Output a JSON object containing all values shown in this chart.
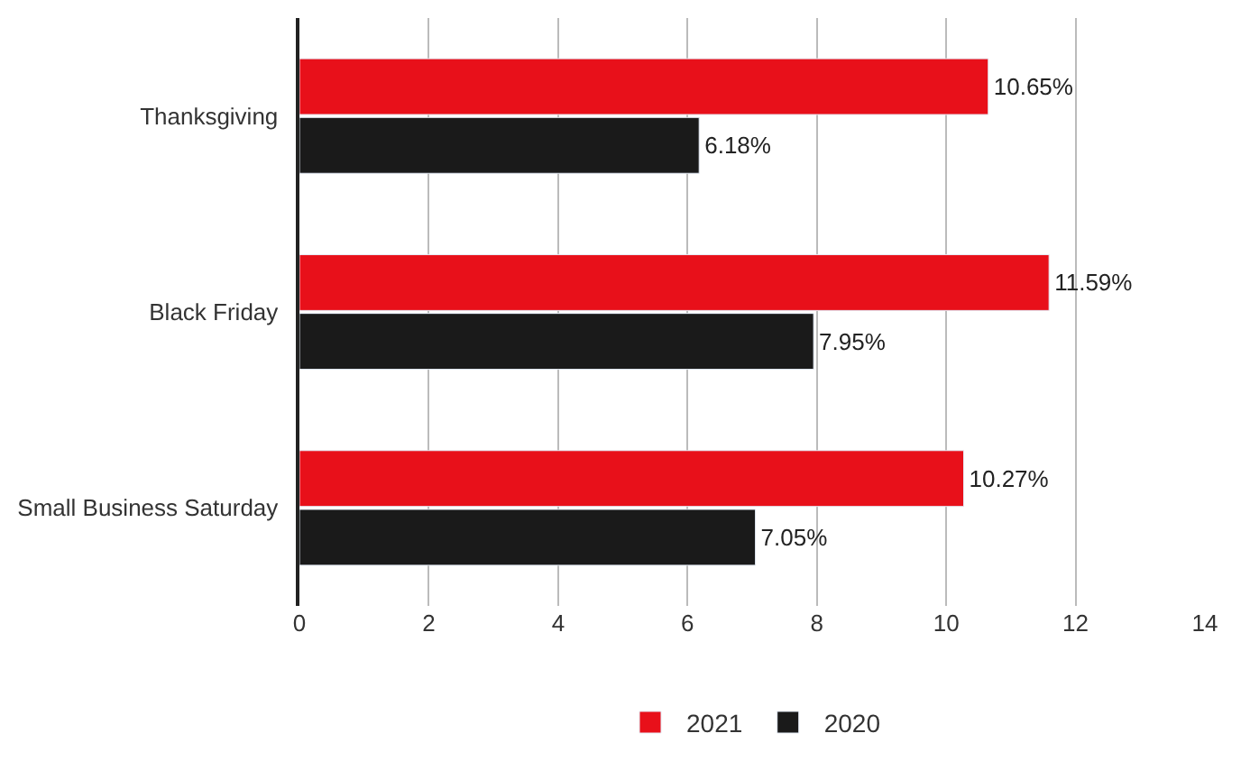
{
  "chart_data": {
    "type": "bar",
    "orientation": "horizontal",
    "categories": [
      "Thanksgiving",
      "Black Friday",
      "Small Business Saturday"
    ],
    "series": [
      {
        "name": "2021",
        "color": "#e8101a",
        "values": [
          10.65,
          11.59,
          10.27
        ],
        "value_labels": [
          "10.65%",
          "11.59%",
          "10.27%"
        ]
      },
      {
        "name": "2020",
        "color": "#1a1a1a",
        "values": [
          6.18,
          7.95,
          7.05
        ],
        "value_labels": [
          "6.18%",
          "7.95%",
          "7.05%"
        ]
      }
    ],
    "xlim": [
      0,
      14
    ],
    "xticks": [
      0,
      2,
      4,
      6,
      8,
      10,
      12,
      14
    ],
    "grid": "x",
    "legend": "bottom"
  }
}
